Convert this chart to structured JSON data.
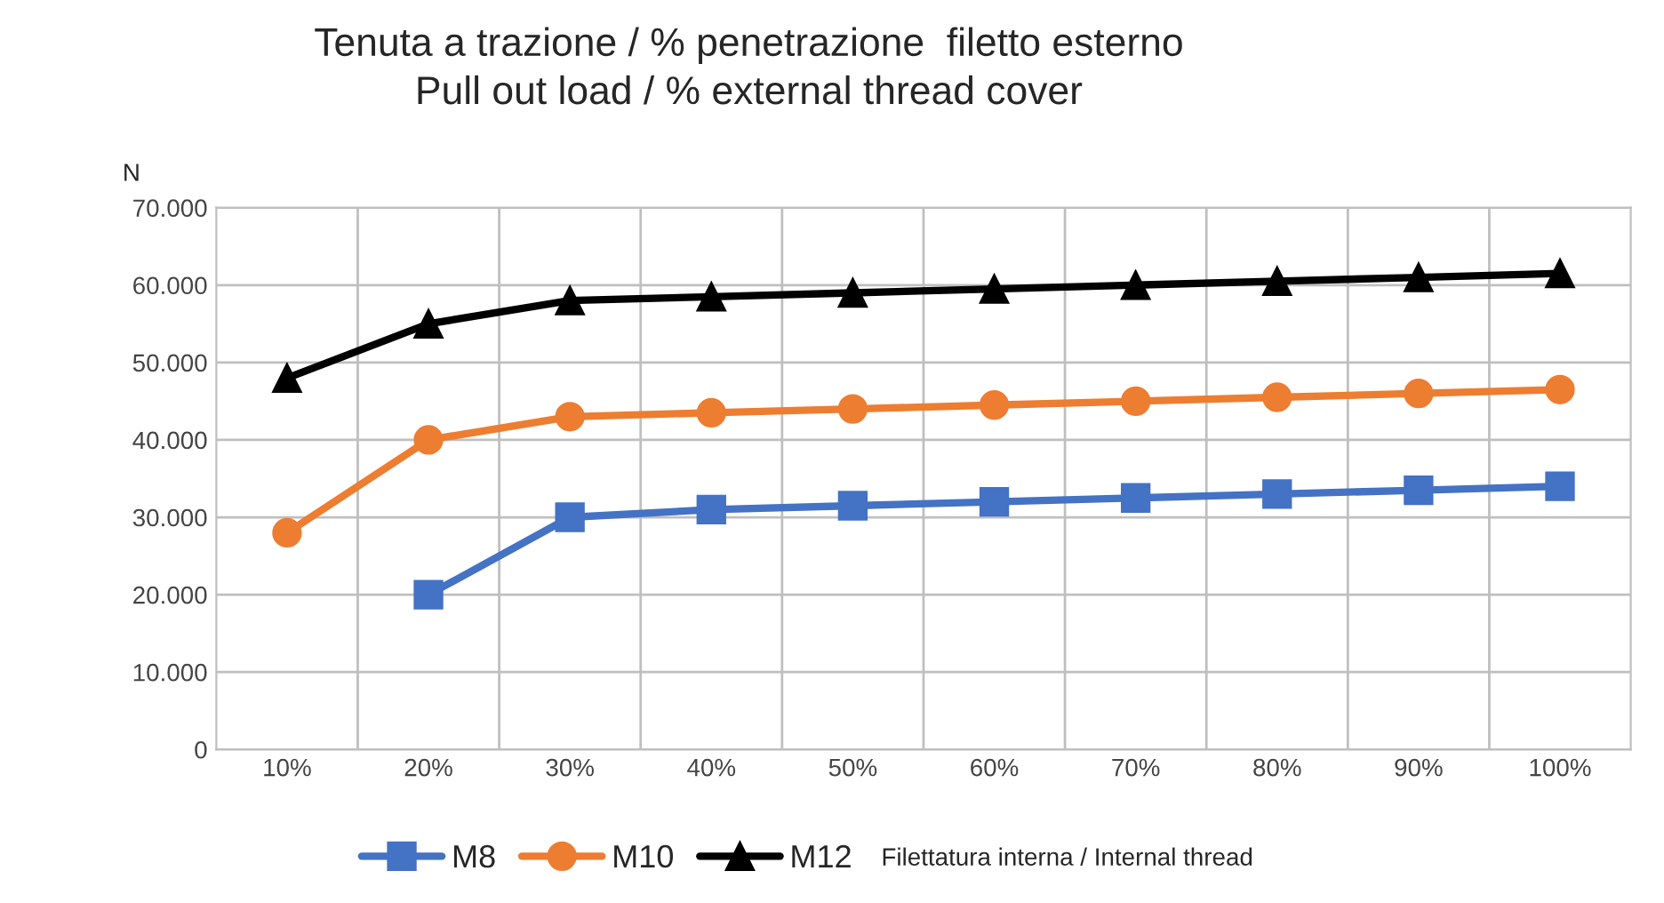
{
  "chart_data": {
    "type": "line",
    "title": "Tenuta a trazione / % penetrazione  filetto esterno\nPull out load / % external thread cover",
    "ylabel": "N",
    "legend_title": "Filettatura interna / Internal thread",
    "categories": [
      "10%",
      "20%",
      "30%",
      "40%",
      "50%",
      "60%",
      "70%",
      "80%",
      "90%",
      "100%"
    ],
    "series": [
      {
        "name": "M8",
        "color": "#4472c4",
        "marker": "square",
        "values": [
          null,
          20000,
          30000,
          31000,
          31500,
          32000,
          32500,
          33000,
          33500,
          34000
        ]
      },
      {
        "name": "M10",
        "color": "#ed7d31",
        "marker": "circle",
        "values": [
          28000,
          40000,
          43000,
          43500,
          44000,
          44500,
          45000,
          45500,
          46000,
          46500
        ]
      },
      {
        "name": "M12",
        "color": "#000000",
        "marker": "triangle",
        "values": [
          48000,
          55000,
          58000,
          58500,
          59000,
          59500,
          60000,
          60500,
          61000,
          61500
        ]
      }
    ],
    "ylim": [
      0,
      70000
    ],
    "yticks": [
      0,
      {
        "value": 10000,
        "label": "10.000"
      },
      {
        "value": 20000,
        "label": "20.000"
      },
      {
        "value": 30000,
        "label": "30.000"
      },
      {
        "value": 40000,
        "label": "40.000"
      },
      {
        "value": 50000,
        "label": "50.000"
      },
      {
        "value": 60000,
        "label": "60.000"
      },
      {
        "value": 70000,
        "label": "70.000"
      }
    ],
    "grid": true,
    "legend": "bottom"
  }
}
